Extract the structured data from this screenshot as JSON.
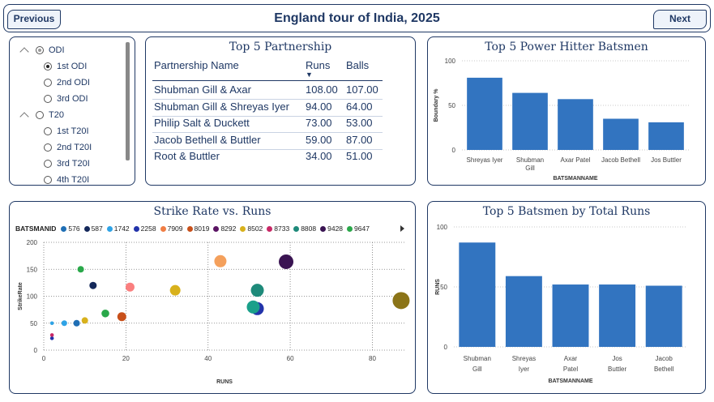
{
  "header": {
    "title": "England tour of India, 2025",
    "prev_label": "Previous",
    "next_label": "Next"
  },
  "slicer": {
    "items": [
      {
        "label": "ODI",
        "level": 0,
        "state": "partial",
        "expanded": true
      },
      {
        "label": "1st ODI",
        "level": 1,
        "state": "selected"
      },
      {
        "label": "2nd ODI",
        "level": 1,
        "state": "none"
      },
      {
        "label": "3rd ODI",
        "level": 1,
        "state": "none"
      },
      {
        "label": "T20",
        "level": 0,
        "state": "none",
        "expanded": true
      },
      {
        "label": "1st T20I",
        "level": 1,
        "state": "none"
      },
      {
        "label": "2nd T20I",
        "level": 1,
        "state": "none"
      },
      {
        "label": "3rd T20I",
        "level": 1,
        "state": "none"
      },
      {
        "label": "4th T20I",
        "level": 1,
        "state": "none"
      }
    ]
  },
  "partnership": {
    "title": "Top 5 Partnership",
    "columns": [
      "Partnership Name",
      "Runs",
      "Balls"
    ],
    "sort_indicator": "▼",
    "rows": [
      [
        "Shubman Gill & Axar",
        "108.00",
        "107.00"
      ],
      [
        "Shubman Gill & Shreyas Iyer",
        "94.00",
        "64.00"
      ],
      [
        "Philip Salt & Duckett",
        "73.00",
        "53.00"
      ],
      [
        "Jacob Bethell & Buttler",
        "59.00",
        "87.00"
      ],
      [
        "Root & Buttler",
        "34.00",
        "51.00"
      ]
    ]
  },
  "power_hitters": {
    "chart_data": {
      "type": "bar",
      "title": "Top 5 Power Hitter Batsmen",
      "categories": [
        "Shreyas Iyer",
        "Shubman Gill",
        "Axar Patel",
        "Jacob Bethell",
        "Jos Buttler"
      ],
      "values": [
        81,
        64,
        57,
        35,
        31
      ],
      "xlabel": "BATSMANNAME",
      "ylabel": "Boundary %",
      "ylim": [
        0,
        100
      ],
      "yticks": [
        "0",
        "50",
        "100"
      ],
      "bar_color": "#3274c0"
    }
  },
  "scatter": {
    "chart_data": {
      "type": "scatter",
      "title": "Strike Rate vs. Runs",
      "legend_title": "BATSMANID",
      "legend": [
        {
          "id": "576",
          "color": "#1f6fb5"
        },
        {
          "id": "587",
          "color": "#14285a"
        },
        {
          "id": "1742",
          "color": "#2fa3e6"
        },
        {
          "id": "2258",
          "color": "#2233aa"
        },
        {
          "id": "7909",
          "color": "#f07e44"
        },
        {
          "id": "8019",
          "color": "#c8501a"
        },
        {
          "id": "8292",
          "color": "#5a1463"
        },
        {
          "id": "8502",
          "color": "#d8b11c"
        },
        {
          "id": "8733",
          "color": "#c82866"
        },
        {
          "id": "8808",
          "color": "#1e8a7a"
        },
        {
          "id": "9428",
          "color": "#3a1452"
        },
        {
          "id": "9647",
          "color": "#2aa84a"
        }
      ],
      "xlabel": "RUNS",
      "ylabel": "StrikeRate",
      "xlim": [
        0,
        88
      ],
      "ylim": [
        0,
        200
      ],
      "xticks": [
        "0",
        "20",
        "40",
        "60",
        "80"
      ],
      "yticks": [
        "0",
        "50",
        "100",
        "150",
        "200"
      ],
      "points": [
        {
          "x": 2,
          "y": 22,
          "r": 2.3,
          "color": "#2233aa"
        },
        {
          "x": 2,
          "y": 28,
          "r": 2.3,
          "color": "#c82866"
        },
        {
          "x": 2,
          "y": 50,
          "r": 2.3,
          "color": "#2fa3e6"
        },
        {
          "x": 5,
          "y": 50,
          "r": 3.5,
          "color": "#2fa3e6"
        },
        {
          "x": 8,
          "y": 50,
          "r": 4,
          "color": "#1f6fb5"
        },
        {
          "x": 10,
          "y": 55,
          "r": 4,
          "color": "#d8b11c"
        },
        {
          "x": 9,
          "y": 150,
          "r": 4,
          "color": "#2aa84a"
        },
        {
          "x": 12,
          "y": 120,
          "r": 4.5,
          "color": "#14285a"
        },
        {
          "x": 15,
          "y": 68,
          "r": 4.8,
          "color": "#2aa84a"
        },
        {
          "x": 19,
          "y": 62,
          "r": 5.5,
          "color": "#c8501a"
        },
        {
          "x": 21,
          "y": 117,
          "r": 5.5,
          "color": "#fa7f7f"
        },
        {
          "x": 32,
          "y": 111,
          "r": 6.5,
          "color": "#d8b11c"
        },
        {
          "x": 43,
          "y": 165,
          "r": 7.5,
          "color": "#f4a05c"
        },
        {
          "x": 52,
          "y": 111,
          "r": 8,
          "color": "#1e8a7a"
        },
        {
          "x": 52,
          "y": 77,
          "r": 8,
          "color": "#2233aa"
        },
        {
          "x": 51,
          "y": 80,
          "r": 8,
          "color": "#1aa08a"
        },
        {
          "x": 59,
          "y": 164,
          "r": 9,
          "color": "#3a1452"
        },
        {
          "x": 87,
          "y": 92,
          "r": 10.5,
          "color": "#8b7418"
        }
      ]
    }
  },
  "total_runs": {
    "chart_data": {
      "type": "bar",
      "title": "Top 5 Batsmen by Total Runs",
      "categories": [
        [
          "Shubman",
          "Gill"
        ],
        [
          "Shreyas",
          "Iyer"
        ],
        [
          "Axar",
          "Patel"
        ],
        [
          "Jos",
          "Buttler"
        ],
        [
          "Jacob",
          "Bethell"
        ]
      ],
      "values": [
        87,
        59,
        52,
        52,
        51
      ],
      "xlabel": "BATSMANNAME",
      "ylabel": "RUNS",
      "ylim": [
        0,
        100
      ],
      "yticks": [
        "0",
        "50",
        "100"
      ],
      "bar_color": "#3274c0"
    }
  }
}
